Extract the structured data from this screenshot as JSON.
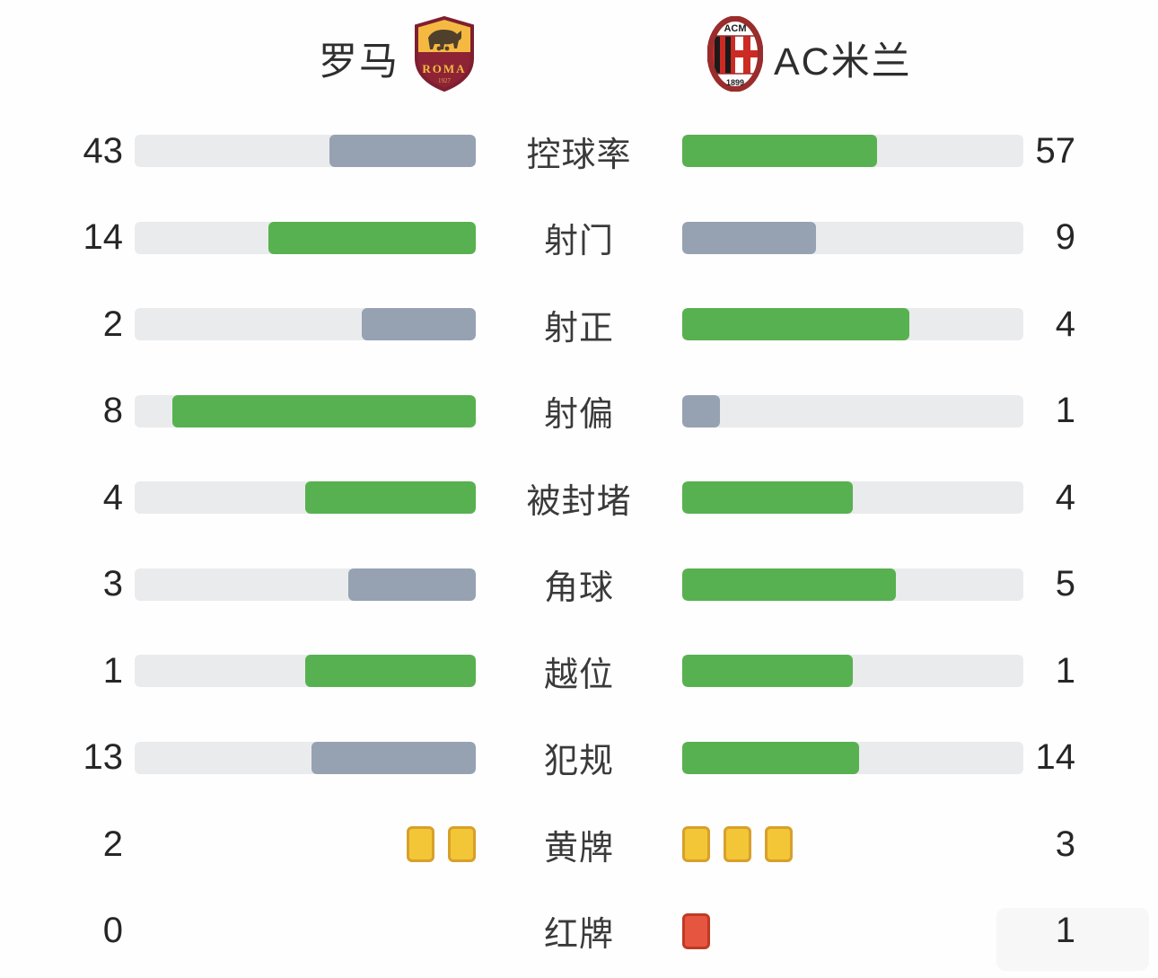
{
  "header": {
    "home_team": "罗马",
    "away_team": "AC米兰",
    "home_logo": "roma-crest",
    "away_logo": "ac-milan-crest",
    "roma_crest_text": "ROMA",
    "roma_crest_year": "1927",
    "milan_crest_text": "ACM",
    "milan_crest_year": "1899"
  },
  "colors": {
    "lead_bar": "#58b150",
    "trail_bar": "#96a2b2",
    "track": "#e9ebed",
    "number_text": "#262626",
    "label_text": "#3a3a3a",
    "yellow_card": "#f3c637",
    "yellow_card_border": "#d7a02b",
    "red_card": "#e65540",
    "red_card_border": "#bf3a24",
    "roma_maroon": "#8e2335",
    "roma_gold": "#f5b942",
    "milan_red": "#cc2b24",
    "milan_black": "#1a1a1a"
  },
  "chart_data": {
    "type": "bar",
    "layout": "mirrored-horizontal-paired-bars",
    "title": "",
    "categories": [
      "控球率",
      "射门",
      "射正",
      "射偏",
      "被封堵",
      "角球",
      "越位",
      "犯规",
      "黄牌",
      "红牌"
    ],
    "series": [
      {
        "name": "罗马",
        "values": [
          43,
          14,
          2,
          8,
          4,
          3,
          1,
          13,
          2,
          0
        ]
      },
      {
        "name": "AC米兰",
        "values": [
          57,
          9,
          4,
          1,
          4,
          5,
          1,
          14,
          3,
          1
        ]
      }
    ],
    "bar_fill_rule": "value / (home + away) of track width",
    "grid": false,
    "legend_position": "top (team names with crests)"
  },
  "stats": {
    "rows": [
      {
        "label": "控球率",
        "home": 43,
        "away": 57,
        "home_color": "gray",
        "away_color": "green",
        "type": "bar"
      },
      {
        "label": "射门",
        "home": 14,
        "away": 9,
        "home_color": "green",
        "away_color": "gray",
        "type": "bar"
      },
      {
        "label": "射正",
        "home": 2,
        "away": 4,
        "home_color": "gray",
        "away_color": "green",
        "type": "bar"
      },
      {
        "label": "射偏",
        "home": 8,
        "away": 1,
        "home_color": "green",
        "away_color": "gray",
        "type": "bar"
      },
      {
        "label": "被封堵",
        "home": 4,
        "away": 4,
        "home_color": "green",
        "away_color": "green",
        "type": "bar"
      },
      {
        "label": "角球",
        "home": 3,
        "away": 5,
        "home_color": "gray",
        "away_color": "green",
        "type": "bar"
      },
      {
        "label": "越位",
        "home": 1,
        "away": 1,
        "home_color": "green",
        "away_color": "green",
        "type": "bar"
      },
      {
        "label": "犯规",
        "home": 13,
        "away": 14,
        "home_color": "gray",
        "away_color": "green",
        "type": "bar"
      },
      {
        "label": "黄牌",
        "home": 2,
        "away": 3,
        "type": "cards",
        "card_color": "yellow"
      },
      {
        "label": "红牌",
        "home": 0,
        "away": 1,
        "type": "cards",
        "card_color": "red"
      }
    ]
  }
}
